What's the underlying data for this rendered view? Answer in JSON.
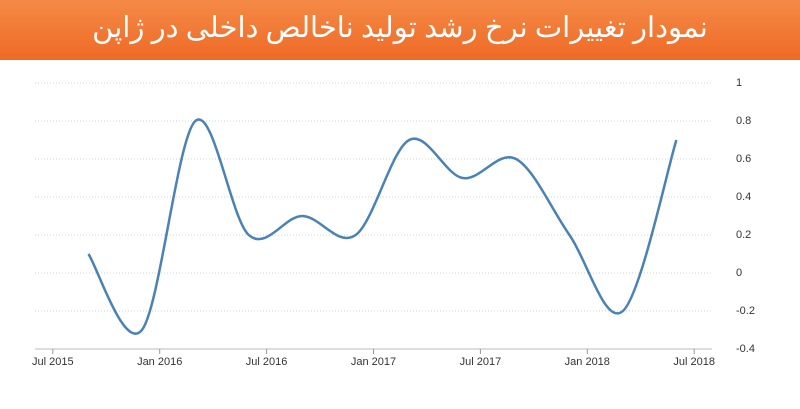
{
  "chart_data": {
    "type": "line",
    "title": "نمودار تغییرات نرخ رشد تولید ناخالص داخلی در ژاپن",
    "x": [
      "2015-09",
      "2015-12",
      "2016-03",
      "2016-06",
      "2016-09",
      "2016-12",
      "2017-03",
      "2017-06",
      "2017-09",
      "2017-12",
      "2018-03",
      "2018-06"
    ],
    "values": [
      0.1,
      -0.3,
      0.8,
      0.2,
      0.3,
      0.2,
      0.7,
      0.5,
      0.6,
      0.2,
      -0.2,
      0.7
    ],
    "color": "#4a82b4",
    "xlim": [
      "2015-06",
      "2018-08"
    ],
    "xticks": [
      {
        "value": "2015-07",
        "label": "Jul 2015"
      },
      {
        "value": "2016-01",
        "label": "Jan 2016"
      },
      {
        "value": "2016-07",
        "label": "Jul 2016"
      },
      {
        "value": "2017-01",
        "label": "Jan 2017"
      },
      {
        "value": "2017-07",
        "label": "Jul 2017"
      },
      {
        "value": "2018-01",
        "label": "Jan 2018"
      },
      {
        "value": "2018-07",
        "label": "Jul 2018"
      }
    ],
    "ylim": [
      -0.4,
      1
    ],
    "yticks": [
      -0.4,
      -0.2,
      0,
      0.2,
      0.4,
      0.6,
      0.8,
      1
    ],
    "grid": true
  }
}
